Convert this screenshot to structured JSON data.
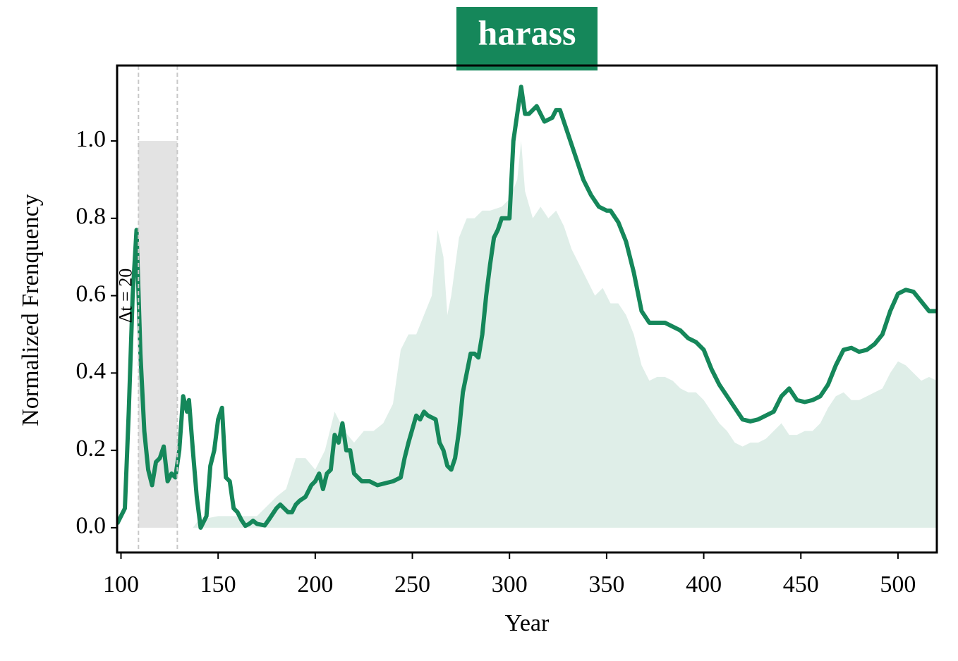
{
  "chart_data": {
    "type": "line",
    "title": "harass",
    "title_background": "#15875a",
    "xlabel": "Year",
    "ylabel": "Normalized Frenquency",
    "xlim": [
      98,
      520
    ],
    "ylim": [
      -0.064,
      1.195
    ],
    "xticks": [
      100,
      150,
      200,
      250,
      300,
      350,
      400,
      450,
      500
    ],
    "yticks": [
      {
        "value": 0,
        "label": "0.0"
      },
      {
        "value": 0.2,
        "label": "0.2"
      },
      {
        "value": 0.4,
        "label": "0.4"
      },
      {
        "value": 0.6,
        "label": "0.6"
      },
      {
        "value": 0.8,
        "label": "0.8"
      },
      {
        "value": 1.0,
        "label": "1.0"
      }
    ],
    "window": {
      "x": [
        109,
        129
      ],
      "y": [
        0,
        1.0
      ],
      "color": "#e3e3e3",
      "annotation": "Δt = 20"
    },
    "series": [
      {
        "type": "area",
        "color": "#dfeee8",
        "x": [
          137,
          140,
          150,
          160,
          170,
          180,
          185,
          190,
          195,
          200,
          205,
          210,
          215,
          220,
          225,
          230,
          235,
          240,
          244,
          248,
          252,
          256,
          260,
          263,
          266,
          268,
          270,
          274,
          278,
          282,
          286,
          290,
          296,
          300,
          304,
          306,
          308,
          312,
          316,
          320,
          324,
          328,
          332,
          336,
          340,
          344,
          348,
          352,
          356,
          360,
          364,
          368,
          372,
          376,
          380,
          384,
          388,
          392,
          396,
          400,
          404,
          408,
          412,
          416,
          420,
          424,
          428,
          432,
          436,
          440,
          444,
          448,
          452,
          456,
          460,
          464,
          468,
          472,
          476,
          480,
          484,
          488,
          492,
          496,
          500,
          504,
          508,
          512,
          516,
          520
        ],
        "values": [
          0,
          0.02,
          0.03,
          0.03,
          0.03,
          0.08,
          0.1,
          0.18,
          0.18,
          0.15,
          0.2,
          0.3,
          0.25,
          0.22,
          0.25,
          0.25,
          0.27,
          0.32,
          0.46,
          0.5,
          0.5,
          0.55,
          0.6,
          0.77,
          0.7,
          0.55,
          0.6,
          0.75,
          0.8,
          0.8,
          0.82,
          0.82,
          0.83,
          0.85,
          0.9,
          1.0,
          0.87,
          0.8,
          0.83,
          0.8,
          0.82,
          0.78,
          0.72,
          0.68,
          0.64,
          0.6,
          0.62,
          0.58,
          0.58,
          0.55,
          0.5,
          0.42,
          0.38,
          0.39,
          0.39,
          0.38,
          0.36,
          0.35,
          0.35,
          0.33,
          0.3,
          0.27,
          0.25,
          0.22,
          0.21,
          0.22,
          0.22,
          0.23,
          0.25,
          0.27,
          0.24,
          0.24,
          0.25,
          0.25,
          0.27,
          0.31,
          0.34,
          0.35,
          0.33,
          0.33,
          0.34,
          0.35,
          0.36,
          0.4,
          0.43,
          0.42,
          0.4,
          0.38,
          0.39,
          0.38
        ]
      },
      {
        "type": "line",
        "color": "#15875a",
        "x": [
          98,
          100,
          102,
          104,
          106,
          108,
          110,
          112,
          114,
          116,
          118,
          120,
          122,
          124,
          126,
          128,
          130,
          132,
          134,
          135,
          137,
          139,
          141,
          144,
          146,
          148,
          150,
          152,
          154,
          156,
          158,
          160,
          162,
          164,
          166,
          168,
          170,
          174,
          176,
          180,
          182,
          186,
          188,
          190,
          192,
          195,
          198,
          200,
          202,
          204,
          206,
          208,
          210,
          212,
          214,
          216,
          218,
          220,
          222,
          224,
          228,
          232,
          236,
          240,
          244,
          246,
          248,
          252,
          254,
          256,
          258,
          262,
          264,
          266,
          268,
          270,
          272,
          274,
          276,
          278,
          280,
          282,
          284,
          286,
          288,
          290,
          292,
          294,
          296,
          300,
          302,
          304,
          306,
          308,
          310,
          314,
          318,
          322,
          324,
          326,
          330,
          334,
          338,
          342,
          346,
          350,
          352,
          356,
          360,
          364,
          368,
          372,
          376,
          380,
          384,
          388,
          392,
          396,
          400,
          404,
          408,
          412,
          416,
          420,
          424,
          428,
          432,
          436,
          440,
          444,
          448,
          452,
          456,
          460,
          464,
          468,
          472,
          476,
          480,
          484,
          488,
          492,
          496,
          500,
          504,
          508,
          512,
          516,
          520
        ],
        "values": [
          0.01,
          0.03,
          0.05,
          0.3,
          0.6,
          0.77,
          0.45,
          0.25,
          0.15,
          0.11,
          0.17,
          0.18,
          0.21,
          0.12,
          0.14,
          0.13,
          0.2,
          0.34,
          0.3,
          0.33,
          0.2,
          0.08,
          0.0,
          0.03,
          0.16,
          0.2,
          0.28,
          0.31,
          0.13,
          0.12,
          0.05,
          0.04,
          0.02,
          0.005,
          0.01,
          0.018,
          0.01,
          0.006,
          0.02,
          0.05,
          0.06,
          0.04,
          0.04,
          0.06,
          0.07,
          0.08,
          0.11,
          0.12,
          0.14,
          0.1,
          0.14,
          0.15,
          0.24,
          0.22,
          0.27,
          0.2,
          0.2,
          0.14,
          0.13,
          0.12,
          0.12,
          0.11,
          0.115,
          0.12,
          0.13,
          0.18,
          0.22,
          0.29,
          0.28,
          0.3,
          0.29,
          0.28,
          0.22,
          0.2,
          0.16,
          0.15,
          0.18,
          0.25,
          0.35,
          0.4,
          0.45,
          0.45,
          0.44,
          0.5,
          0.6,
          0.68,
          0.75,
          0.77,
          0.8,
          0.8,
          1.0,
          1.07,
          1.14,
          1.07,
          1.07,
          1.09,
          1.05,
          1.06,
          1.08,
          1.08,
          1.02,
          0.96,
          0.9,
          0.86,
          0.83,
          0.82,
          0.82,
          0.79,
          0.74,
          0.66,
          0.56,
          0.53,
          0.53,
          0.53,
          0.52,
          0.51,
          0.49,
          0.48,
          0.46,
          0.41,
          0.37,
          0.34,
          0.31,
          0.28,
          0.275,
          0.28,
          0.29,
          0.3,
          0.34,
          0.36,
          0.33,
          0.325,
          0.33,
          0.34,
          0.37,
          0.42,
          0.46,
          0.465,
          0.455,
          0.46,
          0.475,
          0.5,
          0.56,
          0.605,
          0.615,
          0.61,
          0.585,
          0.56,
          0.56
        ]
      }
    ]
  }
}
